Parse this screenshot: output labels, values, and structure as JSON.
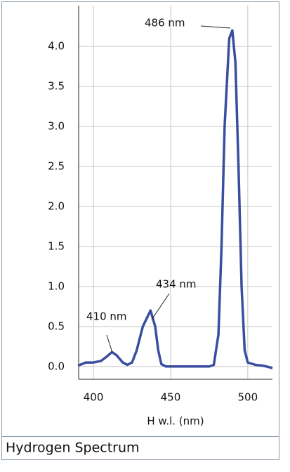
{
  "chart_data": {
    "type": "line",
    "title": "Hydrogen Spectrum",
    "xlabel": "H w.l. (nm)",
    "x": [
      390,
      395,
      400,
      405,
      409,
      412,
      415,
      419,
      422,
      425,
      428,
      432,
      437,
      440,
      442,
      444,
      447,
      460,
      475,
      478,
      481,
      483,
      485,
      488,
      490,
      492,
      494,
      496,
      498,
      500,
      505,
      510,
      516
    ],
    "series": [
      {
        "color": "#3a4ea0",
        "values": [
          0.01,
          0.05,
          0.05,
          0.07,
          0.13,
          0.18,
          0.14,
          0.05,
          0.02,
          0.05,
          0.2,
          0.5,
          0.7,
          0.5,
          0.2,
          0.03,
          0,
          0,
          0,
          0.02,
          0.4,
          1.5,
          3.0,
          4.1,
          4.2,
          3.8,
          2.5,
          1.0,
          0.2,
          0.05,
          0.02,
          0.01,
          -0.02
        ]
      }
    ],
    "annotations": [
      "486 nm",
      "434 nm",
      "410 nm"
    ],
    "xlim": [
      390.4,
      516
    ],
    "ylim": [
      -0.16,
      4.51
    ],
    "xticks": [
      400,
      450,
      500
    ],
    "yticks": [
      {
        "value": 0,
        "label": "0.0"
      },
      0.5,
      {
        "value": 1,
        "label": "1.0"
      },
      1.5,
      {
        "value": 2,
        "label": "2.0"
      },
      2.5,
      {
        "value": 3,
        "label": "3.0"
      },
      3.5,
      {
        "value": 4,
        "label": "4.0"
      }
    ],
    "grid": true
  }
}
